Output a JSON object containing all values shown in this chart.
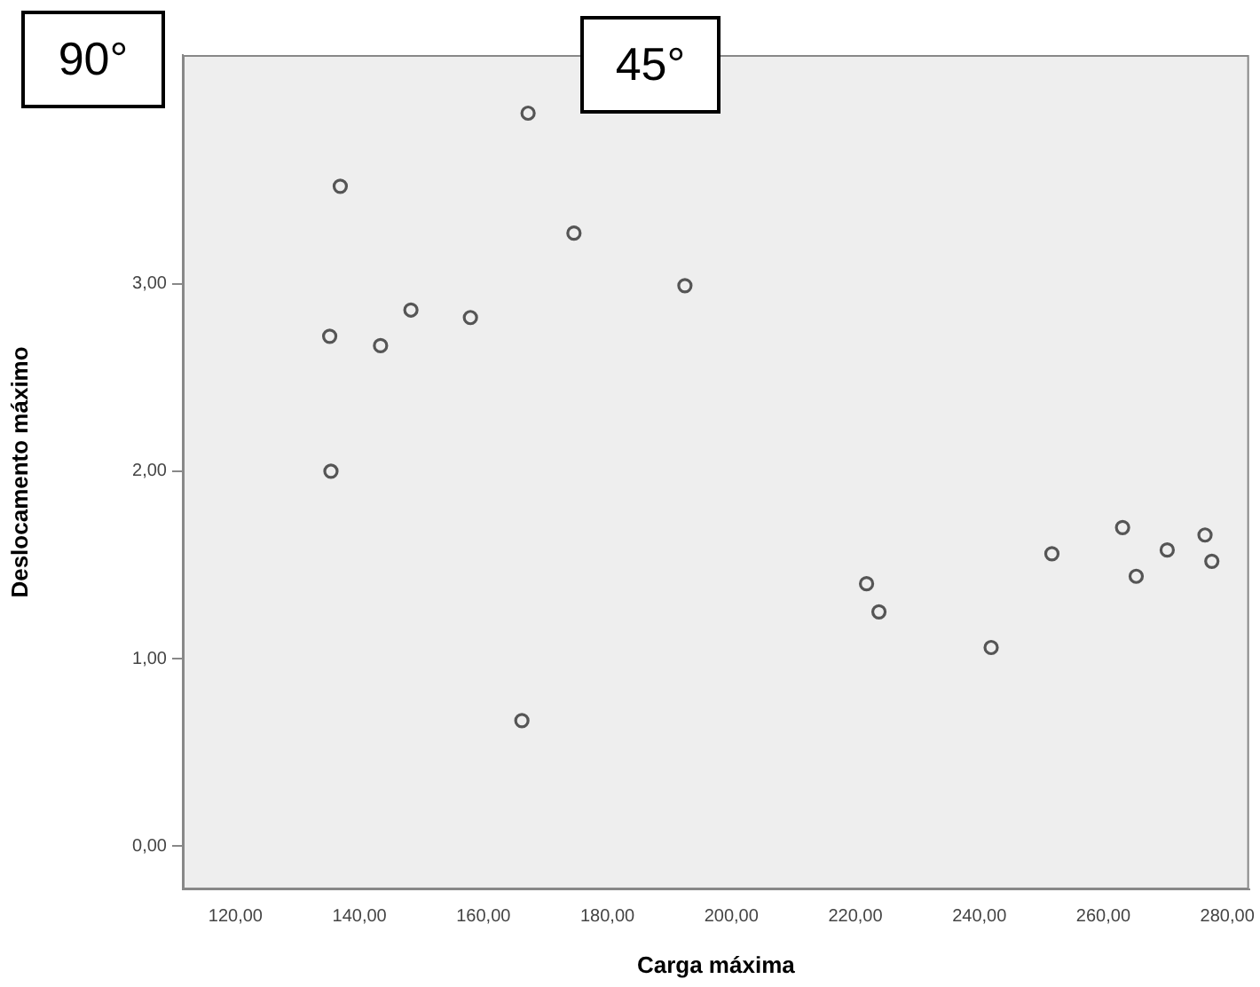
{
  "chart_data": {
    "type": "scatter",
    "xlabel": "Carga máxima",
    "ylabel": "Deslocamento máximo",
    "annotations": [
      "90°",
      "45°"
    ],
    "x": [
      167.2,
      136.9,
      174.6,
      192.5,
      148.3,
      157.9,
      135.2,
      143.4,
      135.4,
      166.2,
      221.8,
      223.8,
      241.9,
      251.7,
      263.1,
      265.3,
      270.3,
      276.4,
      277.5
    ],
    "values": [
      3.91,
      3.52,
      3.27,
      2.99,
      2.86,
      2.82,
      2.72,
      2.67,
      2.0,
      0.67,
      1.4,
      1.25,
      1.06,
      1.56,
      1.7,
      1.44,
      1.58,
      1.66,
      1.52
    ],
    "color": "#555555",
    "marker": "circle",
    "grid": false,
    "legend": false,
    "xlim": [
      111.5,
      283.5
    ],
    "ylim": [
      -0.23,
      4.22
    ],
    "xticks": [
      {
        "value": 120,
        "label": "120,00"
      },
      {
        "value": 140,
        "label": "140,00"
      },
      {
        "value": 160,
        "label": "160,00"
      },
      {
        "value": 180,
        "label": "180,00"
      },
      {
        "value": 200,
        "label": "200,00"
      },
      {
        "value": 220,
        "label": "220,00"
      },
      {
        "value": 240,
        "label": "240,00"
      },
      {
        "value": 260,
        "label": "260,00"
      },
      {
        "value": 280,
        "label": "280,00"
      }
    ],
    "yticks": [
      {
        "value": 0,
        "label": "0,00"
      },
      {
        "value": 1,
        "label": "1,00"
      },
      {
        "value": 2,
        "label": "2,00"
      },
      {
        "value": 3,
        "label": "3,00"
      }
    ]
  }
}
